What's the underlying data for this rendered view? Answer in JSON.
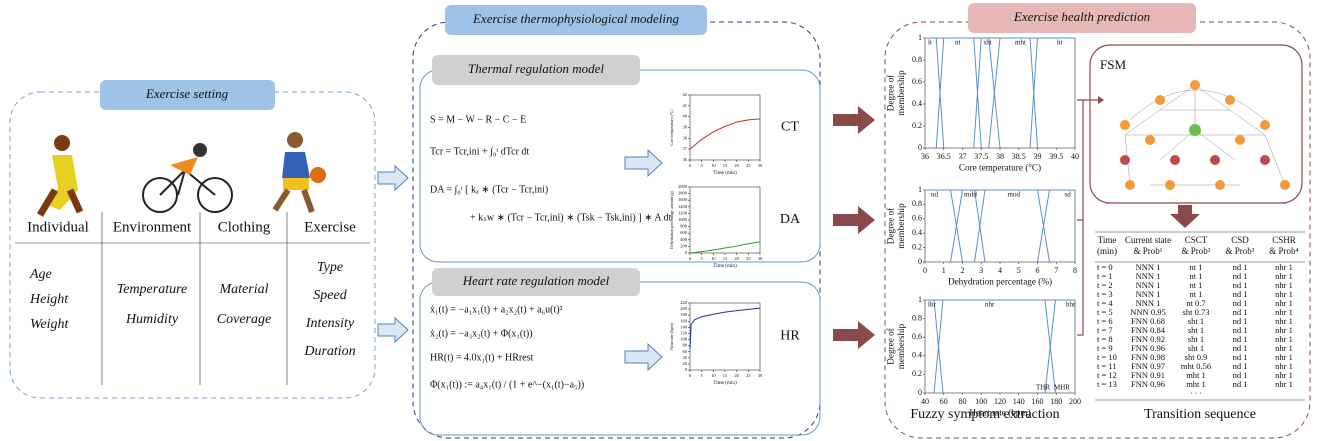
{
  "exercise_setting": {
    "title": "Exercise setting",
    "columns": [
      {
        "name": "Individual",
        "items": [
          "Age",
          "Height",
          "Weight"
        ]
      },
      {
        "name": "Environment",
        "items": [
          "Temperature",
          "Humidity"
        ]
      },
      {
        "name": "Clothing",
        "items": [
          "Material",
          "Coverage"
        ]
      },
      {
        "name": "Exercise",
        "items": [
          "Type",
          "Speed",
          "Intensity",
          "Duration"
        ]
      }
    ]
  },
  "modeling": {
    "title": "Exercise thermophysiological modeling",
    "thermal": {
      "title": "Thermal regulation model",
      "equations": [
        "S = M − W − R − C − E",
        "Tcr = Tcr,ini + ∫₀ᵗ dTcr dt",
        "DA = ∫₀ᵗ [ kₐ ∗ (Tcr − Tcr,ini)",
        "+ kₛw ∗ (Tcr − Tcr,ini) ∗ (Tsk − Tsk,ini) ] ∗ A dt"
      ]
    },
    "heart": {
      "title": "Heart rate regulation model",
      "equations": [
        "ẋ₁(t) = −a₁x₁(t) + a₂x₂(t) + a₆u(t)²",
        "ẋ₂(t) = −a₃x₂(t) + Φ(x₁(t))",
        "HR(t) = 4.0x₁(t) + HRrest",
        "Φ(x₁(t)) := a₄x₁(t) / (1 + e^−(x₁(t)−a₅))"
      ]
    }
  },
  "charts": {
    "ct": {
      "type": "line",
      "tag": "CT",
      "xlabel": "Time (min)",
      "ylabel": "Core temperature (°C)",
      "color": "#d62020",
      "xlim": [
        0,
        30
      ],
      "ylim": [
        36,
        42
      ],
      "xticks": [
        0,
        5,
        10,
        15,
        20,
        25,
        30
      ],
      "yticks": [
        36,
        37,
        38,
        39,
        40,
        41,
        42
      ],
      "x": [
        0,
        5,
        10,
        15,
        20,
        25,
        30
      ],
      "y": [
        37.0,
        37.9,
        38.6,
        39.1,
        39.5,
        39.7,
        39.8
      ]
    },
    "da": {
      "type": "line",
      "tag": "DA",
      "xlabel": "Time (min)",
      "ylabel": "Dehydration percentage amount (g)",
      "color": "#2a9a2a",
      "xlim": [
        0,
        30
      ],
      "ylim": [
        0,
        2000
      ],
      "xticks": [
        0,
        5,
        10,
        15,
        20,
        25,
        30
      ],
      "yticks": [
        0,
        200,
        400,
        600,
        800,
        1000,
        1200,
        1400,
        1600,
        1800,
        2000
      ],
      "x": [
        0,
        5,
        10,
        15,
        20,
        25,
        30
      ],
      "y": [
        0,
        40,
        90,
        150,
        210,
        280,
        340
      ]
    },
    "hr": {
      "type": "line",
      "tag": "HR",
      "xlabel": "Time (min)",
      "ylabel": "Heart rate (bpm)",
      "color": "#2030a0",
      "xlim": [
        0,
        30
      ],
      "ylim": [
        0,
        220
      ],
      "xticks": [
        0,
        5,
        10,
        15,
        20,
        25,
        30
      ],
      "yticks": [
        0,
        20,
        40,
        60,
        80,
        100,
        120,
        140,
        160,
        180,
        200,
        220
      ],
      "x": [
        0,
        0.5,
        2,
        5,
        10,
        15,
        20,
        25,
        30
      ],
      "y": [
        70,
        150,
        165,
        175,
        183,
        190,
        195,
        199,
        203
      ]
    }
  },
  "prediction": {
    "title": "Exercise health prediction",
    "fsm_label": "FSM",
    "fuzzy_title": "Fuzzy symptom extraction",
    "transition_title": "Transition sequence",
    "membership": [
      {
        "xlabel": "Core temperature (°C)",
        "ylabel": [
          "Degree of",
          "membership"
        ],
        "xlim": [
          36,
          40
        ],
        "ylim": [
          0,
          1
        ],
        "xticks": [
          36,
          36.5,
          37,
          37.5,
          38,
          38.5,
          39,
          39.5,
          40
        ],
        "yticks": [
          0,
          0.2,
          0.4,
          0.6,
          0.8,
          1
        ],
        "sets": [
          "lt",
          "nt",
          "sht",
          "mht",
          "ht"
        ]
      },
      {
        "xlabel": "Dehydration percentage (%)",
        "ylabel": [
          "Degree of",
          "membership"
        ],
        "xlim": [
          0,
          8
        ],
        "ylim": [
          0,
          1
        ],
        "xticks": [
          0,
          1,
          2,
          3,
          4,
          5,
          6,
          7,
          8
        ],
        "yticks": [
          0,
          0.2,
          0.4,
          0.6,
          0.8,
          1
        ],
        "sets": [
          "nd",
          "mild",
          "mod",
          "sd"
        ]
      },
      {
        "xlabel": "Heart rate (bpm)",
        "ylabel": [
          "Degree of",
          "membership"
        ],
        "xlim": [
          40,
          200
        ],
        "ylim": [
          0,
          1
        ],
        "xticks": [
          40,
          60,
          80,
          100,
          120,
          140,
          160,
          180,
          200
        ],
        "yticks": [
          0,
          0.2,
          0.4,
          0.6,
          0.8,
          1
        ],
        "sets": [
          "lhr",
          "nhr",
          "hhr"
        ],
        "limits": [
          "THR",
          "MHR"
        ]
      }
    ],
    "table": {
      "header": [
        [
          "Time",
          "(min)"
        ],
        [
          "Current state",
          "& Prob¹"
        ],
        [
          "CSCT",
          "& Prob²"
        ],
        [
          "CSD",
          "& Prob³"
        ],
        [
          "CSHR",
          "& Prob⁴"
        ]
      ],
      "rows": [
        [
          "t = 0",
          "NNN 1",
          "nt 1",
          "nd 1",
          "nhr 1"
        ],
        [
          "t = 1",
          "NNN 1",
          "nt 1",
          "nd 1",
          "nhr 1"
        ],
        [
          "t = 2",
          "NNN 1",
          "nt 1",
          "nd 1",
          "nhr 1"
        ],
        [
          "t = 3",
          "NNN 1",
          "nt 1",
          "nd 1",
          "nhr 1"
        ],
        [
          "t = 4",
          "NNN 1",
          "nt 0.7",
          "nd 1",
          "nhr 1"
        ],
        [
          "t = 5",
          "NNN 0.95",
          "sht 0.73",
          "nd 1",
          "nhr 1"
        ],
        [
          "t = 6",
          "FNN 0.68",
          "sht 1",
          "nd 1",
          "nhr 1"
        ],
        [
          "t = 7",
          "FNN 0.84",
          "sht 1",
          "nd 1",
          "nhr 1"
        ],
        [
          "t = 8",
          "FNN 0.92",
          "sht 1",
          "nd 1",
          "nhr 1"
        ],
        [
          "t = 9",
          "FNN 0.96",
          "sht 1",
          "nd 1",
          "nhr 1"
        ],
        [
          "t = 10",
          "FNN 0.98",
          "sht 0.9",
          "nd 1",
          "nhr 1"
        ],
        [
          "t = 11",
          "FNN 0.97",
          "mht 0.56",
          "nd 1",
          "nhr 1"
        ],
        [
          "t = 12",
          "FNN 0.91",
          "mht 1",
          "nd 1",
          "nhr 1"
        ],
        [
          "t = 13",
          "FNN 0.96",
          "mht 1",
          "nd 1",
          "nhr 1"
        ]
      ],
      "ellipsis": "· · ·"
    }
  }
}
